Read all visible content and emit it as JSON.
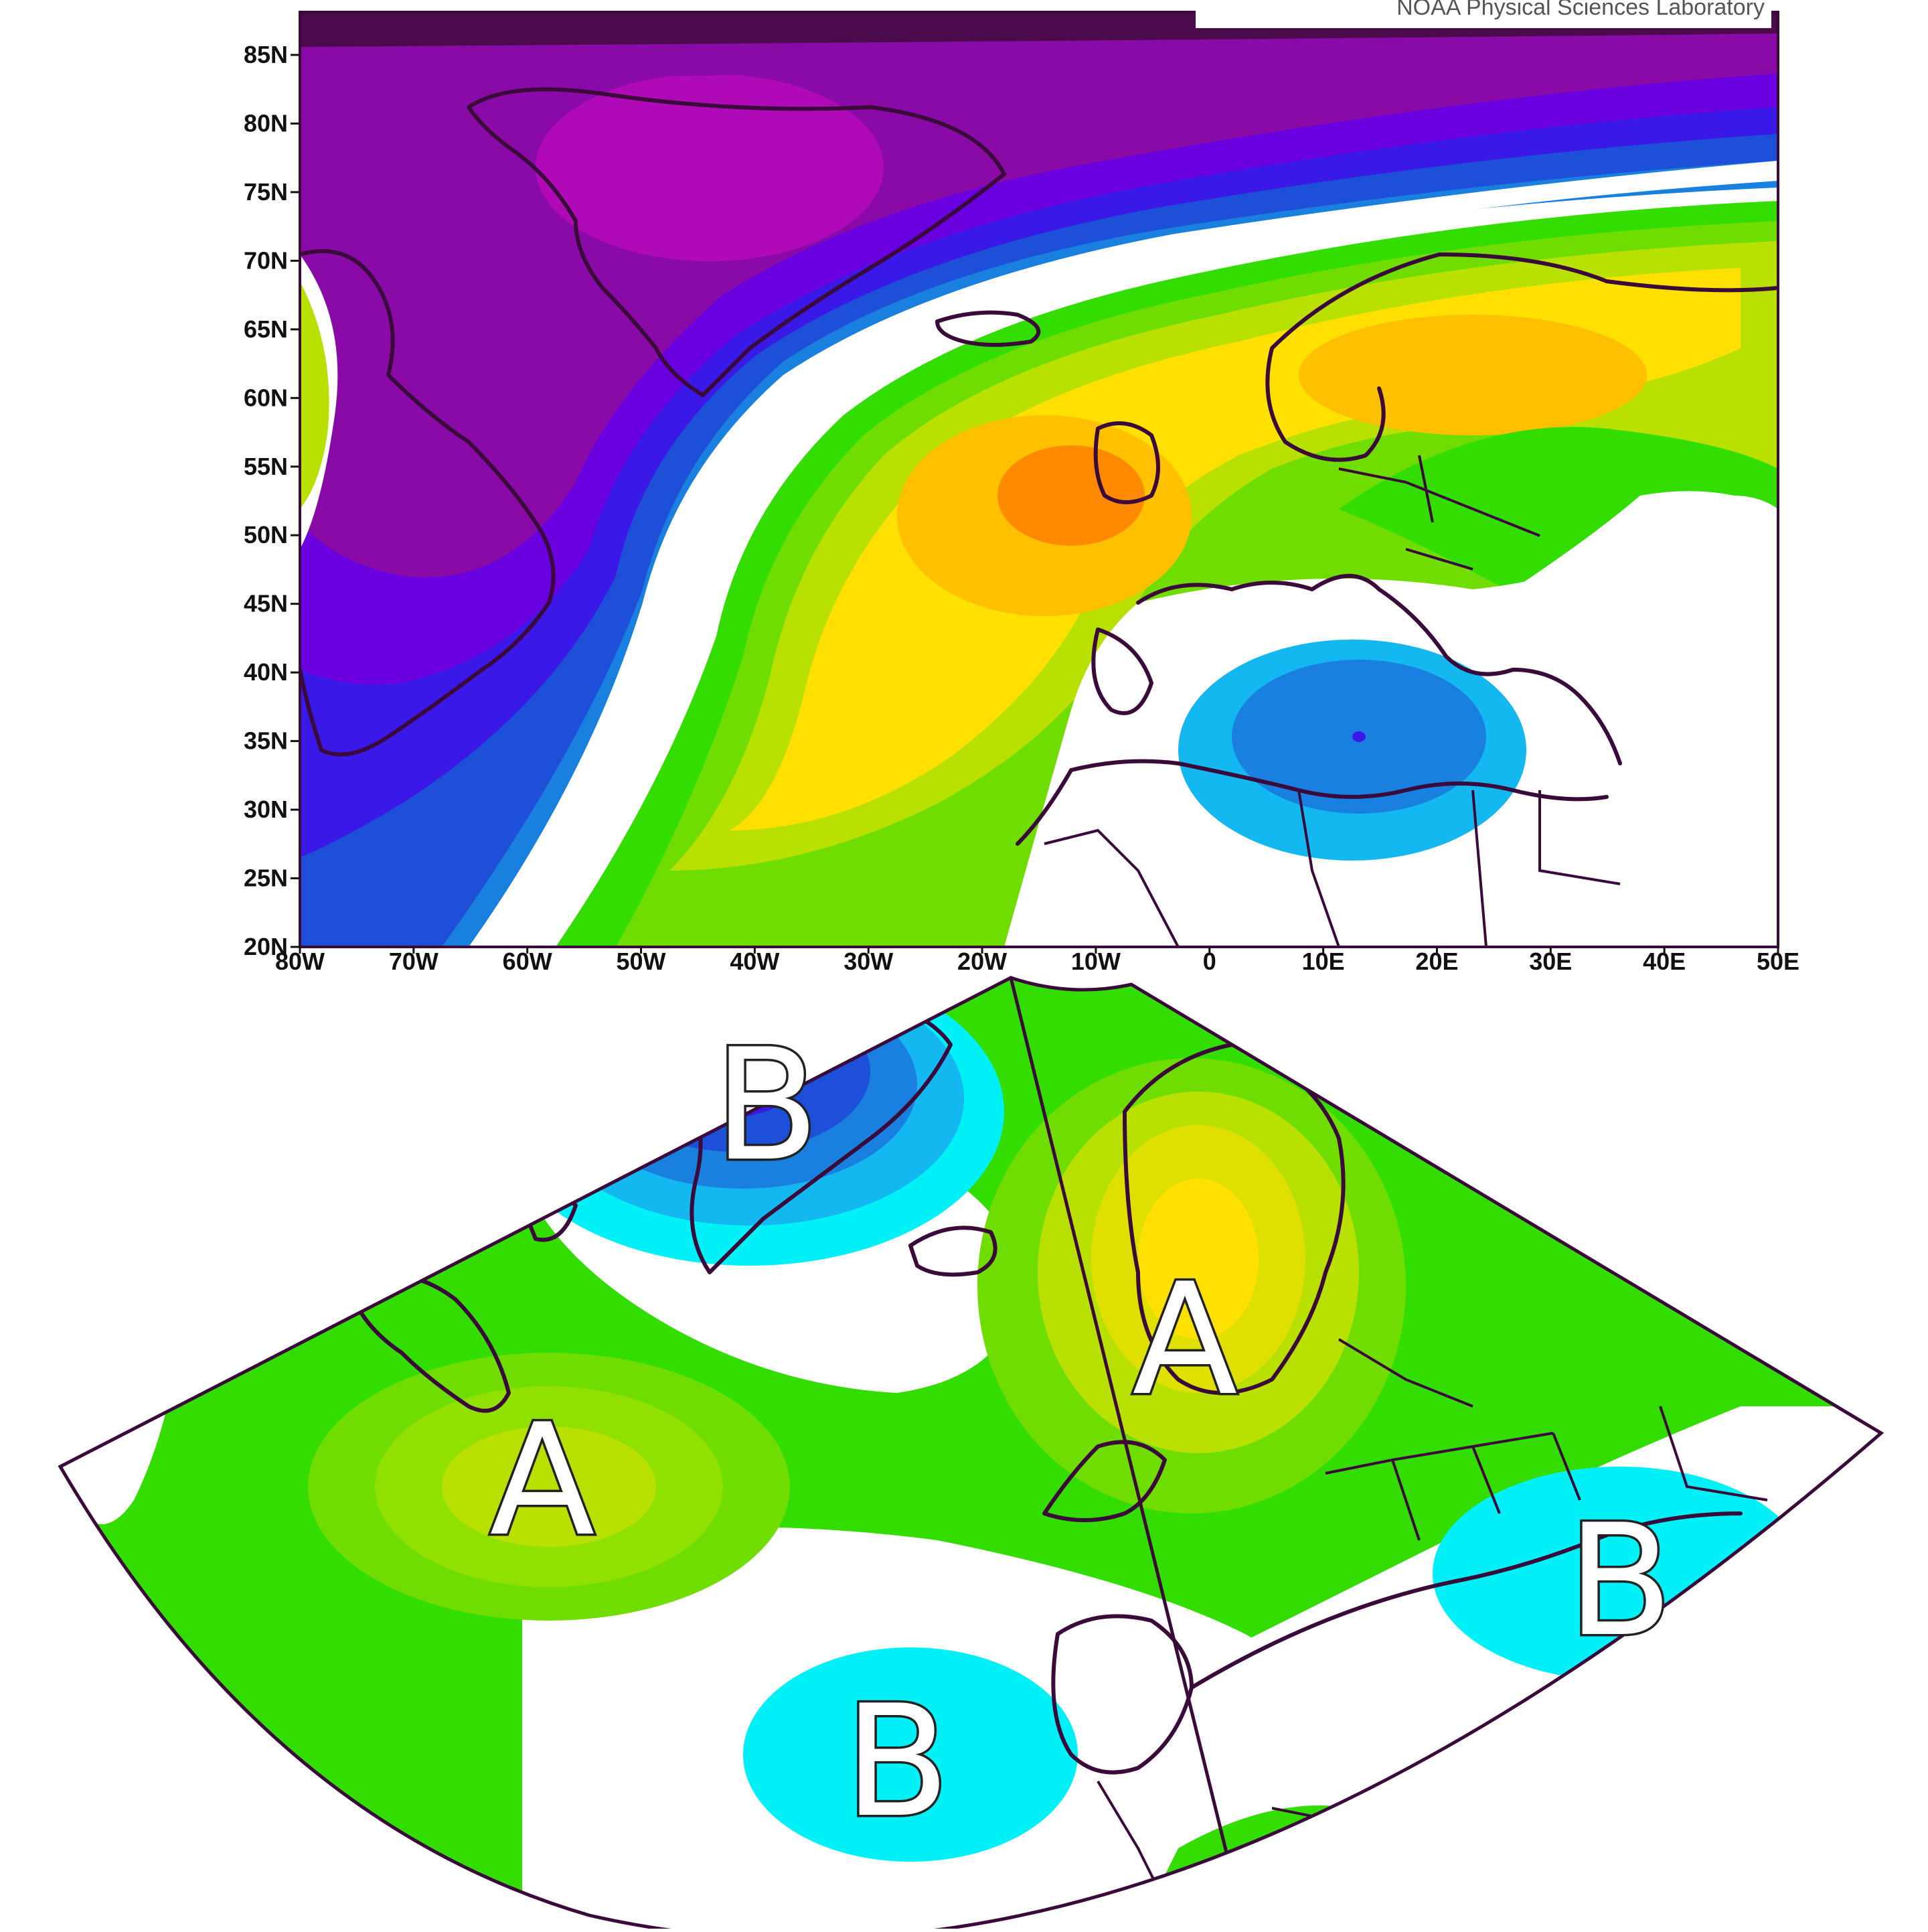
{
  "map_top": {
    "credit": "NOAA Physical Sciences Laboratory",
    "lat_labels": [
      "85N",
      "80N",
      "75N",
      "70N",
      "65N",
      "60N",
      "55N",
      "50N",
      "45N",
      "40N",
      "35N",
      "30N",
      "25N",
      "20N"
    ],
    "lon_labels": [
      "80W",
      "70W",
      "60W",
      "50W",
      "40W",
      "30W",
      "20W",
      "10W",
      "0",
      "10E",
      "20E",
      "30E",
      "40E",
      "50E"
    ],
    "extent": {
      "lon_min": -80,
      "lon_max": 50,
      "lat_min": 20,
      "lat_max": 88
    }
  },
  "map_bottom": {
    "labels": [
      {
        "text": "B",
        "kind": "low"
      },
      {
        "text": "A",
        "kind": "high"
      },
      {
        "text": "A",
        "kind": "high"
      },
      {
        "text": "B",
        "kind": "low"
      },
      {
        "text": "B",
        "kind": "low"
      }
    ]
  },
  "palette": {
    "deep_purple": "#4b0a4b",
    "purple": "#8a0aa8",
    "magenta": "#b00ab8",
    "violet": "#6a00e0",
    "blue_violet": "#3a18e8",
    "blue": "#1e4fd8",
    "mid_blue": "#1a80e0",
    "light_blue": "#14b8f0",
    "cyan": "#00f0f8",
    "white": "#ffffff",
    "green": "#33dd00",
    "light_green": "#70dd00",
    "yellow_green": "#b8e000",
    "yellow": "#ffe000",
    "gold": "#ffc000",
    "orange": "#ff8a00",
    "coast": "#3a0a3a"
  }
}
